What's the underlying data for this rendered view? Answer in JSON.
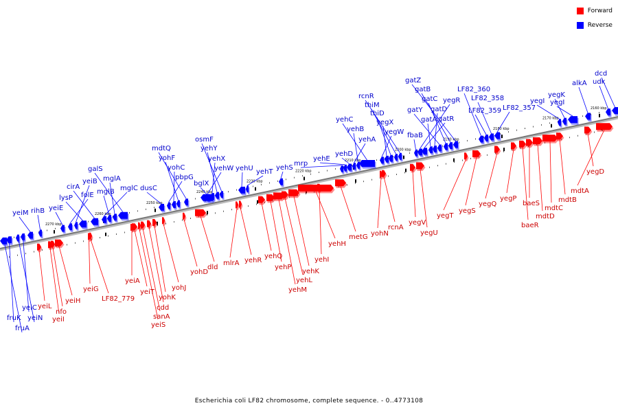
{
  "caption": "Escherichia coli LF82 chromosome, complete sequence. - 0..4773108",
  "legend": [
    {
      "label": "Forward",
      "color": "#ff0000"
    },
    {
      "label": "Reverse",
      "color": "#0000ff"
    }
  ],
  "colors": {
    "forward": "#ff0000",
    "reverse": "#0000ff",
    "forward_label": "#cc0000",
    "reverse_label": "#0000cc",
    "backbone": "#777777"
  },
  "ticks": [
    "2160 kbp",
    "2170 kbp",
    "2180 kbp",
    "2190 kbp",
    "2200 kbp",
    "2210 kbp",
    "2220 kbp",
    "2230 kbp",
    "2240 kbp",
    "2250 kbp",
    "2260 kbp",
    "2270 kbp"
  ],
  "reverse_genes": [
    "dcd",
    "udk",
    "alkA",
    "yegI",
    "yegK",
    "yegI",
    "LF82_357",
    "LF82_358",
    "LF82_359",
    "LF82_360",
    "gatZ",
    "gatB",
    "gatC",
    "gatY",
    "gatD",
    "gatA",
    "gatR",
    "yegR",
    "fbaB",
    "rcnR",
    "thiM",
    "thiD",
    "yegX",
    "yegW",
    "yehC",
    "yehB",
    "yehA",
    "yehD",
    "yehE",
    "mrp",
    "yehS",
    "yehT",
    "yehU",
    "osmF",
    "yehY",
    "yehX",
    "yehW",
    "bglX",
    "mdtQ",
    "yohF",
    "yohC",
    "pbpG",
    "dusC",
    "galS",
    "mglA",
    "mglB",
    "mglC",
    "cirA",
    "lysP",
    "yeiB",
    "folE",
    "yeiE",
    "rihB",
    "yeiM",
    "fruK",
    "fruA",
    "yeiC",
    "yeiN"
  ],
  "forward_genes": [
    "yegD",
    "mdtA",
    "mdtB",
    "mdtC",
    "mdtD",
    "baeS",
    "baeR",
    "yegP",
    "yegQ",
    "yegS",
    "yegT",
    "yegU",
    "yegV",
    "rcnA",
    "yohN",
    "metG",
    "yehH",
    "yehI",
    "yehK",
    "yehL",
    "yehM",
    "yehP",
    "yehQ",
    "yehR",
    "mlrA",
    "dld",
    "yohD",
    "yohJ",
    "yohK",
    "cdd",
    "sanA",
    "yeiS",
    "yeiT",
    "yeiA",
    "LF82_779",
    "yeiG",
    "yeiH",
    "nfo",
    "yeiL",
    "yeiI"
  ]
}
